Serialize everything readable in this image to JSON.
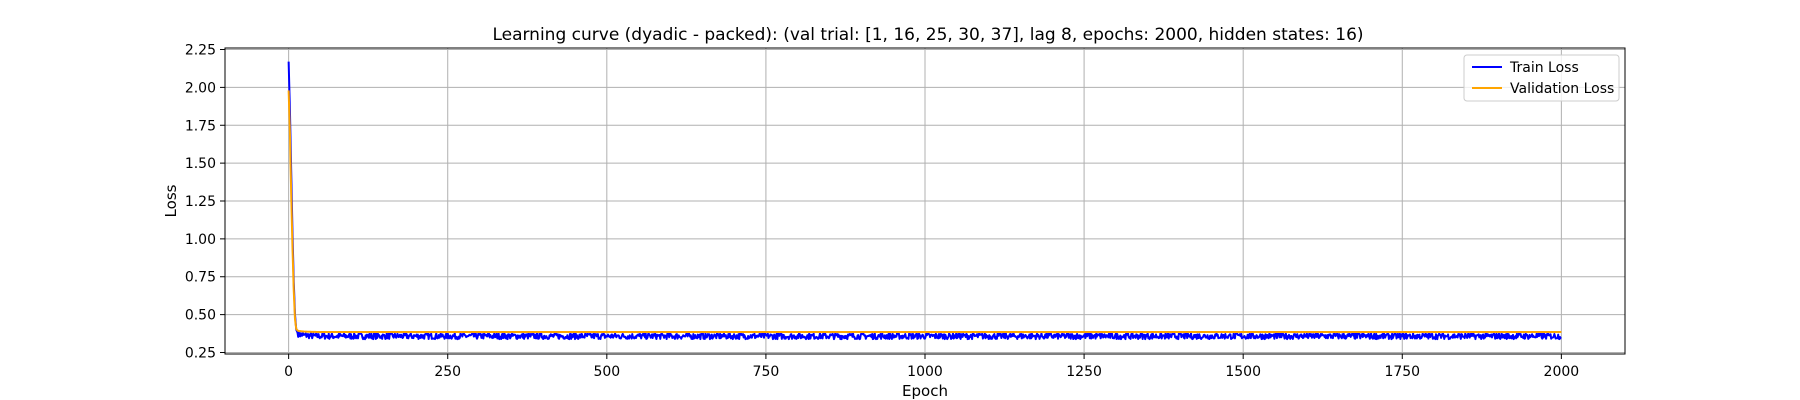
{
  "chart_data": {
    "type": "line",
    "title": "Learning curve (dyadic - packed): (val trial: [1, 16, 25, 30, 37], lag 8, epochs: 2000, hidden states: 16)",
    "xlabel": "Epoch",
    "ylabel": "Loss",
    "xlim": [
      -100,
      2100
    ],
    "ylim": [
      0.24,
      2.26
    ],
    "xticks": [
      0,
      250,
      500,
      750,
      1000,
      1250,
      1500,
      1750,
      2000
    ],
    "xtick_labels": [
      "0",
      "250",
      "500",
      "750",
      "1000",
      "1250",
      "1500",
      "1750",
      "2000"
    ],
    "yticks": [
      0.25,
      0.5,
      0.75,
      1.0,
      1.25,
      1.5,
      1.75,
      2.0,
      2.25
    ],
    "ytick_labels": [
      "0.25",
      "0.50",
      "0.75",
      "1.00",
      "1.25",
      "1.50",
      "1.75",
      "2.00",
      "2.25"
    ],
    "grid": true,
    "legend_position": "top-right",
    "series": [
      {
        "name": "Train Loss",
        "color": "#0000ff",
        "x": [
          0,
          2,
          4,
          6,
          8,
          10,
          12,
          14,
          16,
          20,
          25,
          30,
          40,
          50,
          75,
          100,
          150,
          200,
          250,
          300,
          400,
          500,
          600,
          700,
          800,
          900,
          1000,
          1100,
          1200,
          1300,
          1400,
          1500,
          1600,
          1700,
          1800,
          1900,
          2000
        ],
        "values": [
          2.17,
          1.85,
          1.45,
          1.05,
          0.72,
          0.5,
          0.4,
          0.38,
          0.37,
          0.37,
          0.365,
          0.365,
          0.36,
          0.36,
          0.36,
          0.36,
          0.36,
          0.36,
          0.36,
          0.36,
          0.36,
          0.36,
          0.36,
          0.36,
          0.36,
          0.36,
          0.36,
          0.36,
          0.36,
          0.36,
          0.36,
          0.36,
          0.36,
          0.36,
          0.36,
          0.36,
          0.36
        ],
        "noise_amplitude": 0.02
      },
      {
        "name": "Validation Loss",
        "color": "#ffa500",
        "x": [
          0,
          2,
          4,
          6,
          8,
          10,
          12,
          14,
          16,
          20,
          25,
          30,
          40,
          50,
          75,
          100,
          150,
          200,
          250,
          300,
          400,
          500,
          600,
          700,
          800,
          900,
          1000,
          1100,
          1200,
          1300,
          1400,
          1500,
          1600,
          1700,
          1800,
          1900,
          2000
        ],
        "values": [
          1.98,
          1.7,
          1.3,
          0.95,
          0.66,
          0.47,
          0.405,
          0.395,
          0.392,
          0.39,
          0.388,
          0.387,
          0.386,
          0.385,
          0.385,
          0.385,
          0.385,
          0.385,
          0.385,
          0.385,
          0.385,
          0.385,
          0.385,
          0.385,
          0.385,
          0.385,
          0.385,
          0.385,
          0.385,
          0.385,
          0.385,
          0.385,
          0.385,
          0.385,
          0.385,
          0.385,
          0.385
        ]
      }
    ]
  }
}
